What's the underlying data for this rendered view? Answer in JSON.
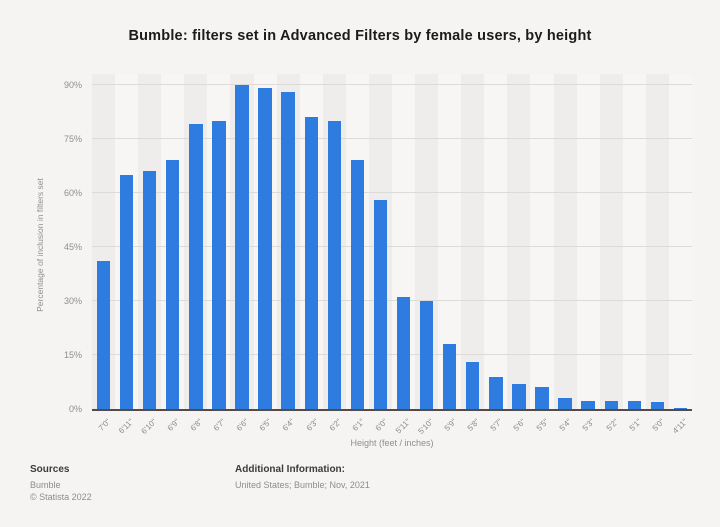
{
  "chart_data": {
    "type": "bar",
    "title": "Bumble: filters set in Advanced Filters by female users, by height",
    "xlabel": "Height (feet / inches)",
    "ylabel": "Percentage of inclusion in filters set",
    "categories": [
      "7'0\"",
      "6'11\"",
      "6'10\"",
      "6'9\"",
      "6'8\"",
      "6'7\"",
      "6'6\"",
      "6'5\"",
      "6'4\"",
      "6'3\"",
      "6'2\"",
      "6'1\"",
      "6'0\"",
      "5'11\"",
      "5'10\"",
      "5'9\"",
      "5'8\"",
      "5'7\"",
      "5'6\"",
      "5'5\"",
      "5'4\"",
      "5'3\"",
      "5'2\"",
      "5'1\"",
      "5'0\"",
      "4'11\""
    ],
    "values": [
      41,
      65,
      66,
      69,
      79,
      80,
      90,
      89,
      88,
      81,
      80,
      69,
      58,
      31,
      30,
      18,
      13,
      9,
      7,
      6,
      3,
      2.3,
      2.3,
      2.3,
      2,
      0.4
    ],
    "yticks": [
      {
        "value": 0,
        "label": "0%"
      },
      {
        "value": 15,
        "label": "15%"
      },
      {
        "value": 30,
        "label": "30%"
      },
      {
        "value": 45,
        "label": "45%"
      },
      {
        "value": 60,
        "label": "60%"
      },
      {
        "value": 75,
        "label": "75%"
      },
      {
        "value": 90,
        "label": "90%"
      }
    ],
    "ylim": [
      0,
      90
    ],
    "grid": true,
    "legend": false,
    "bar_color": "#2e7cdf"
  },
  "footer": {
    "sources_label": "Sources",
    "source_line1": "Bumble",
    "source_line2": "© Statista 2022",
    "additional_label": "Additional Information:",
    "additional_text": "United States; Bumble; Nov, 2021"
  }
}
